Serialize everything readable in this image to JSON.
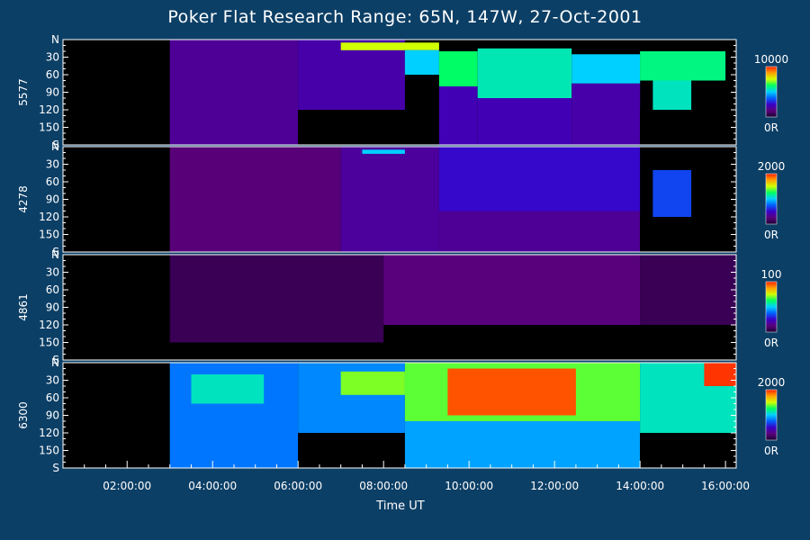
{
  "page": {
    "title": "Poker Flat Research Range: 65N, 147W, 27-Oct-2001"
  },
  "chart_data": {
    "type": "heatmap",
    "title": "Poker Flat Research Range: 65N, 147W, 27-Oct-2001",
    "xlabel": "Time UT",
    "x_unit": "hours UT",
    "xlim": [
      0.5,
      16.25
    ],
    "x_ticks": [
      2,
      4,
      6,
      8,
      10,
      12,
      14,
      16
    ],
    "x_tick_labels": [
      "02:00:00",
      "04:00:00",
      "06:00:00",
      "08:00:00",
      "10:00:00",
      "12:00:00",
      "14:00:00",
      "16:00:00"
    ],
    "y_unit": "zenith angle (degrees, N to S)",
    "y_range": [
      0,
      180
    ],
    "y_ticks": [
      0,
      30,
      60,
      90,
      120,
      150,
      180
    ],
    "y_tick_labels": [
      "N",
      "30",
      "60",
      "90",
      "120",
      "150",
      "S"
    ],
    "colormap": [
      "#1a0033",
      "#5a007a",
      "#3a00c8",
      "#0060ff",
      "#00d0ff",
      "#00ff60",
      "#d0ff00",
      "#ffa000",
      "#ff2000"
    ],
    "panels": [
      {
        "name": "5577",
        "color_max_label": "10000",
        "color_min_label": "0R",
        "blocks": [
          {
            "t0": 0.5,
            "t1": 3.0,
            "z0": 0,
            "z1": 180,
            "level": 0
          },
          {
            "t0": 3.0,
            "t1": 6.0,
            "z0": 0,
            "z1": 180,
            "level": 0.17
          },
          {
            "t0": 6.0,
            "t1": 8.5,
            "z0": 0,
            "z1": 120,
            "level": 0.2
          },
          {
            "t0": 6.0,
            "t1": 8.5,
            "z0": 120,
            "z1": 180,
            "level": 0
          },
          {
            "t0": 7.0,
            "t1": 9.3,
            "z0": 5,
            "z1": 18,
            "level": 0.75
          },
          {
            "t0": 8.5,
            "t1": 9.3,
            "z0": 18,
            "z1": 60,
            "level": 0.5
          },
          {
            "t0": 9.3,
            "t1": 10.2,
            "z0": 20,
            "z1": 80,
            "level": 0.62
          },
          {
            "t0": 9.3,
            "t1": 10.2,
            "z0": 80,
            "z1": 180,
            "level": 0.22
          },
          {
            "t0": 10.2,
            "t1": 12.4,
            "z0": 15,
            "z1": 100,
            "level": 0.56
          },
          {
            "t0": 10.2,
            "t1": 12.4,
            "z0": 100,
            "z1": 180,
            "level": 0.22
          },
          {
            "t0": 12.4,
            "t1": 14.0,
            "z0": 25,
            "z1": 75,
            "level": 0.5
          },
          {
            "t0": 12.4,
            "t1": 14.0,
            "z0": 75,
            "z1": 180,
            "level": 0.2
          },
          {
            "t0": 14.0,
            "t1": 16.0,
            "z0": 20,
            "z1": 70,
            "level": 0.6
          },
          {
            "t0": 14.3,
            "t1": 15.2,
            "z0": 70,
            "z1": 120,
            "level": 0.55
          },
          {
            "t0": 14.0,
            "t1": 16.25,
            "z0": 120,
            "z1": 180,
            "level": 0
          }
        ]
      },
      {
        "name": "4278",
        "color_max_label": "2000",
        "color_min_label": "0R",
        "blocks": [
          {
            "t0": 0.5,
            "t1": 3.0,
            "z0": 0,
            "z1": 180,
            "level": 0
          },
          {
            "t0": 3.0,
            "t1": 7.0,
            "z0": 0,
            "z1": 180,
            "level": 0.12
          },
          {
            "t0": 7.0,
            "t1": 9.3,
            "z0": 0,
            "z1": 180,
            "level": 0.18
          },
          {
            "t0": 7.5,
            "t1": 8.5,
            "z0": 5,
            "z1": 12,
            "level": 0.5
          },
          {
            "t0": 9.3,
            "t1": 14.0,
            "z0": 0,
            "z1": 110,
            "level": 0.26
          },
          {
            "t0": 9.3,
            "t1": 14.0,
            "z0": 110,
            "z1": 180,
            "level": 0.17
          },
          {
            "t0": 14.3,
            "t1": 15.2,
            "z0": 40,
            "z1": 120,
            "level": 0.34
          },
          {
            "t0": 14.0,
            "t1": 16.25,
            "z0": 120,
            "z1": 180,
            "level": 0
          }
        ]
      },
      {
        "name": "4861",
        "color_max_label": "100",
        "color_min_label": "0R",
        "blocks": [
          {
            "t0": 0.5,
            "t1": 3.0,
            "z0": 0,
            "z1": 180,
            "level": 0
          },
          {
            "t0": 3.0,
            "t1": 8.0,
            "z0": 0,
            "z1": 150,
            "level": 0.06
          },
          {
            "t0": 8.0,
            "t1": 14.0,
            "z0": 0,
            "z1": 120,
            "level": 0.13
          },
          {
            "t0": 14.0,
            "t1": 16.25,
            "z0": 0,
            "z1": 120,
            "level": 0.06
          },
          {
            "t0": 14.0,
            "t1": 16.25,
            "z0": 150,
            "z1": 180,
            "level": 0
          }
        ]
      },
      {
        "name": "6300",
        "color_max_label": "2000",
        "color_min_label": "0R",
        "blocks": [
          {
            "t0": 0.5,
            "t1": 3.0,
            "z0": 0,
            "z1": 180,
            "level": 0
          },
          {
            "t0": 3.0,
            "t1": 6.0,
            "z0": 0,
            "z1": 180,
            "level": 0.4
          },
          {
            "t0": 3.5,
            "t1": 5.2,
            "z0": 20,
            "z1": 70,
            "level": 0.55
          },
          {
            "t0": 6.0,
            "t1": 8.5,
            "z0": 0,
            "z1": 120,
            "level": 0.42
          },
          {
            "t0": 6.0,
            "t1": 8.5,
            "z0": 120,
            "z1": 180,
            "level": 0
          },
          {
            "t0": 7.0,
            "t1": 8.5,
            "z0": 15,
            "z1": 55,
            "level": 0.7
          },
          {
            "t0": 8.5,
            "t1": 14.0,
            "z0": 0,
            "z1": 100,
            "level": 0.68
          },
          {
            "t0": 8.5,
            "t1": 14.0,
            "z0": 100,
            "z1": 180,
            "level": 0.45
          },
          {
            "t0": 9.5,
            "t1": 12.5,
            "z0": 10,
            "z1": 90,
            "level": 0.95
          },
          {
            "t0": 14.0,
            "t1": 16.25,
            "z0": 0,
            "z1": 120,
            "level": 0.55
          },
          {
            "t0": 15.5,
            "t1": 16.25,
            "z0": 0,
            "z1": 40,
            "level": 0.98
          },
          {
            "t0": 14.0,
            "t1": 16.25,
            "z0": 120,
            "z1": 180,
            "level": 0
          }
        ]
      }
    ]
  }
}
